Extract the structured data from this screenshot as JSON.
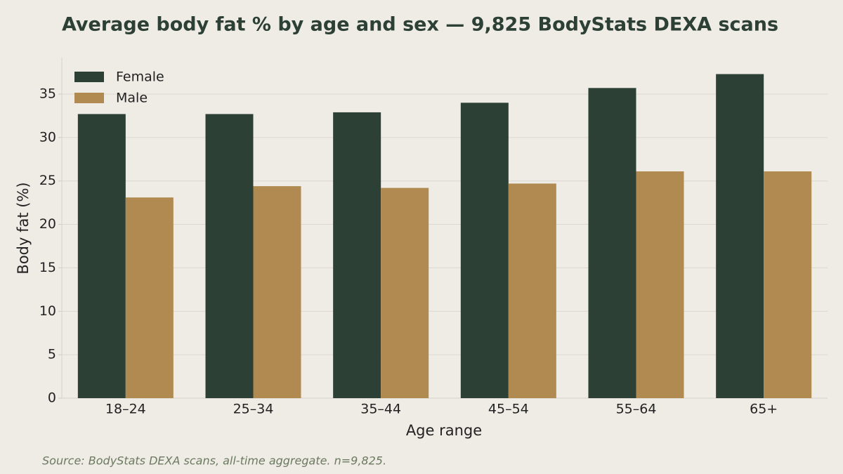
{
  "chart_data": {
    "type": "bar",
    "title": "Average body fat % by age and sex — 9,825 BodyStats DEXA scans",
    "xlabel": "Age range",
    "ylabel": "Body fat (%)",
    "source": "Source: BodyStats DEXA scans, all-time aggregate. n=9,825.",
    "categories": [
      "18–24",
      "25–34",
      "35–44",
      "45–54",
      "55–64",
      "65+"
    ],
    "series": [
      {
        "name": "Female",
        "color": "#2d4036",
        "values": [
          32.7,
          32.7,
          32.9,
          34.0,
          35.7,
          37.3
        ]
      },
      {
        "name": "Male",
        "color": "#b08a50",
        "values": [
          23.1,
          24.4,
          24.2,
          24.7,
          26.1,
          26.1
        ]
      }
    ],
    "ylim": [
      0,
      39.2
    ],
    "yticks": [
      0,
      5,
      10,
      15,
      20,
      25,
      30,
      35
    ],
    "grid": true,
    "legend": "upper-left"
  }
}
